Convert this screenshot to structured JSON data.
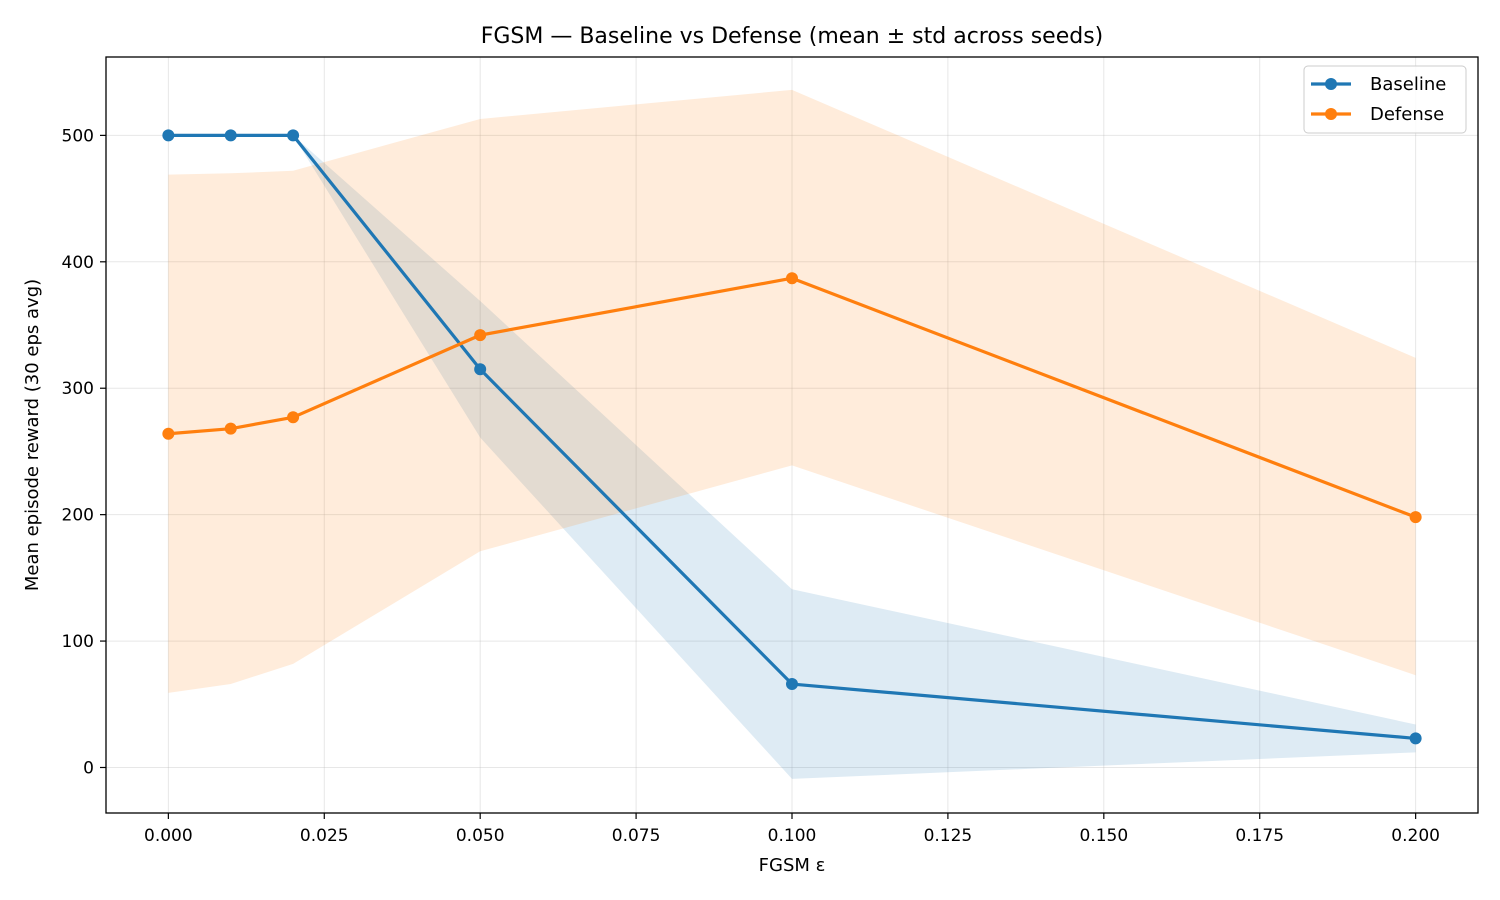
{
  "chart_data": {
    "type": "line",
    "title": "FGSM — Baseline vs Defense (mean ± std across seeds)",
    "xlabel": "FGSM ε",
    "ylabel": "Mean episode reward (30 eps avg)",
    "xlim": [
      -0.01,
      0.21
    ],
    "ylim": [
      -36,
      562
    ],
    "x_ticks": [
      0.0,
      0.025,
      0.05,
      0.075,
      0.1,
      0.125,
      0.15,
      0.175,
      0.2
    ],
    "x_tick_labels": [
      "0.000",
      "0.025",
      "0.050",
      "0.075",
      "0.100",
      "0.125",
      "0.150",
      "0.175",
      "0.200"
    ],
    "y_ticks": [
      0,
      100,
      200,
      300,
      400,
      500
    ],
    "y_tick_labels": [
      "0",
      "100",
      "200",
      "300",
      "400",
      "500"
    ],
    "grid": true,
    "legend_position": "top-right",
    "x": [
      0.0,
      0.01,
      0.02,
      0.05,
      0.1,
      0.2
    ],
    "series": [
      {
        "name": "Baseline",
        "color": "#1f77b4",
        "values": [
          500,
          500,
          500,
          315,
          66,
          23
        ],
        "lower": [
          500,
          500,
          500,
          261,
          -9,
          12
        ],
        "upper": [
          500,
          500,
          500,
          369,
          141,
          34
        ]
      },
      {
        "name": "Defense",
        "color": "#ff7f0e",
        "values": [
          264,
          268,
          277,
          342,
          387,
          198
        ],
        "lower": [
          59,
          66,
          82,
          171,
          239,
          73
        ],
        "upper": [
          469,
          470,
          472,
          513,
          536,
          324
        ]
      }
    ]
  }
}
